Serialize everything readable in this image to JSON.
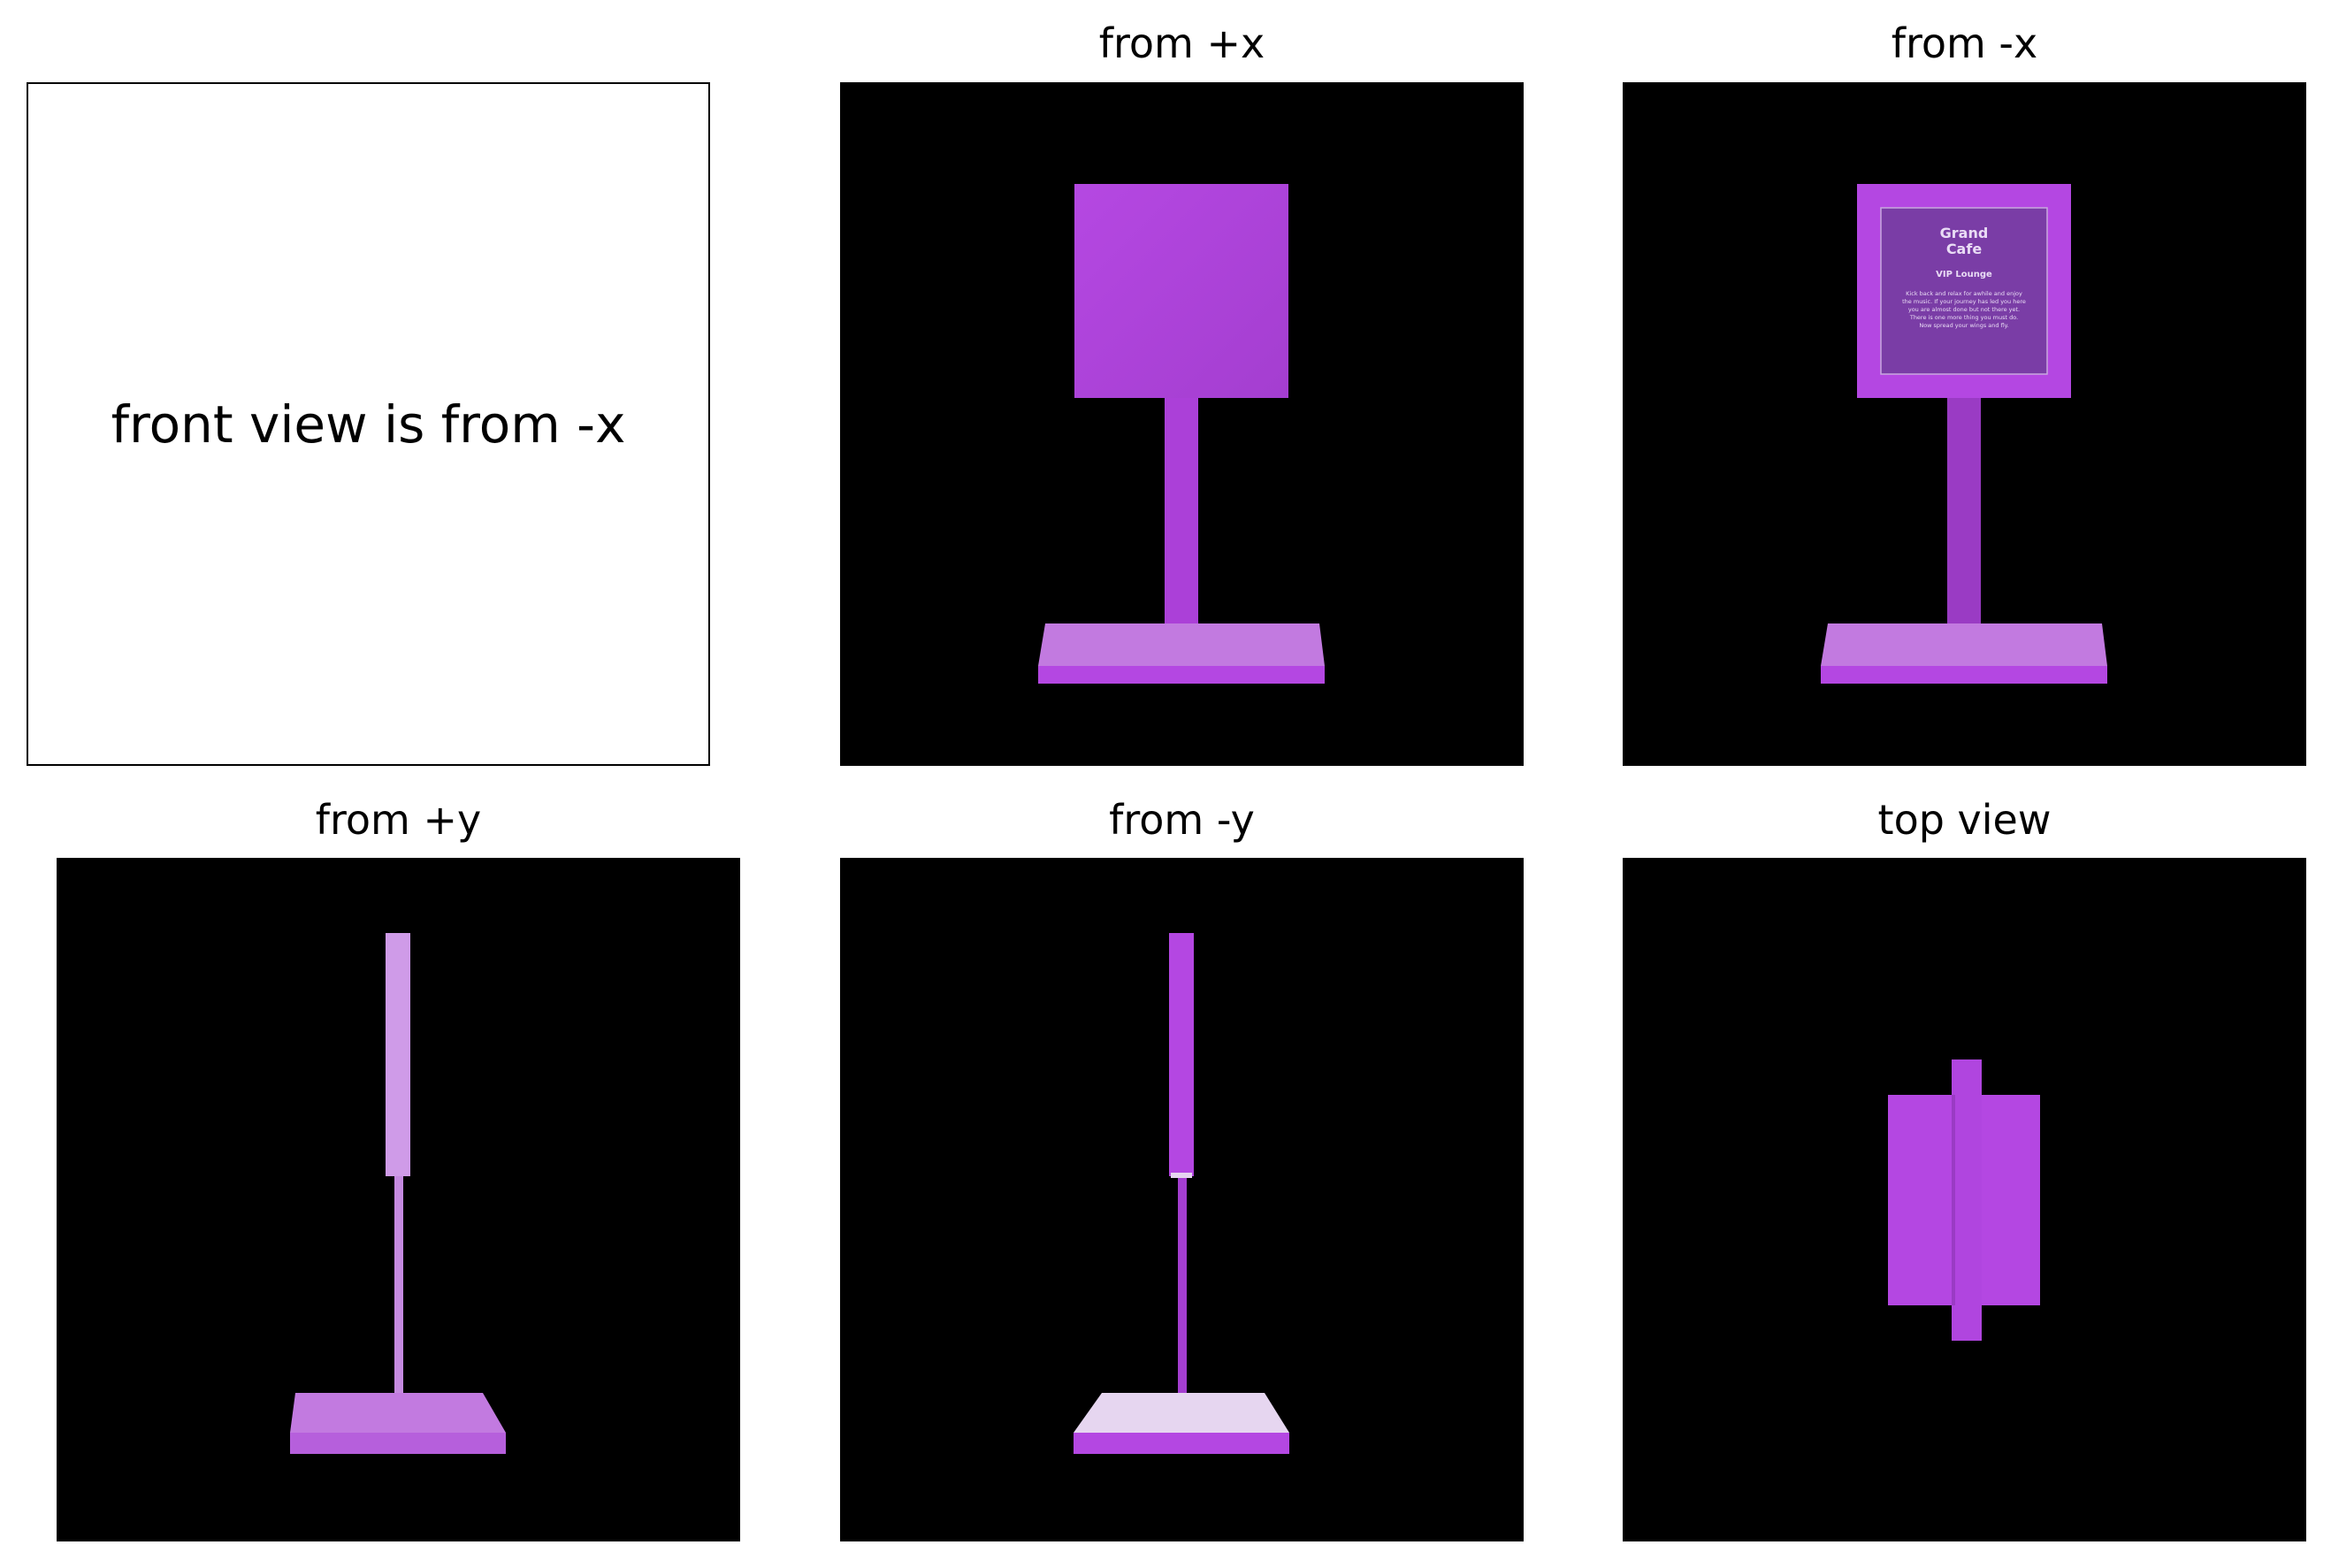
{
  "figure": {
    "views": [
      {
        "key": "front_note",
        "note": "front view is from -x"
      },
      {
        "key": "pos_x",
        "title": "from +x"
      },
      {
        "key": "neg_x",
        "title": "from -x",
        "sign": {
          "logo_lines": [
            "Grand",
            "Cafe"
          ],
          "heading": "VIP Lounge",
          "body_lines": [
            "Kick back and relax for awhile and enjoy",
            "the music. If your journey has led you here",
            "you are almost done but not there yet.",
            "There is one more thing you must do.",
            "Now spread your wings and fly."
          ]
        }
      },
      {
        "key": "pos_y",
        "title": "from +y"
      },
      {
        "key": "neg_y",
        "title": "from -y"
      },
      {
        "key": "top",
        "title": "top view"
      }
    ]
  },
  "colors": {
    "background": "#000000",
    "purple": "#b447e2",
    "purple_dark": "#9a3bc4",
    "purple_light": "#c27ae0",
    "pale": "#e6d6f0"
  }
}
